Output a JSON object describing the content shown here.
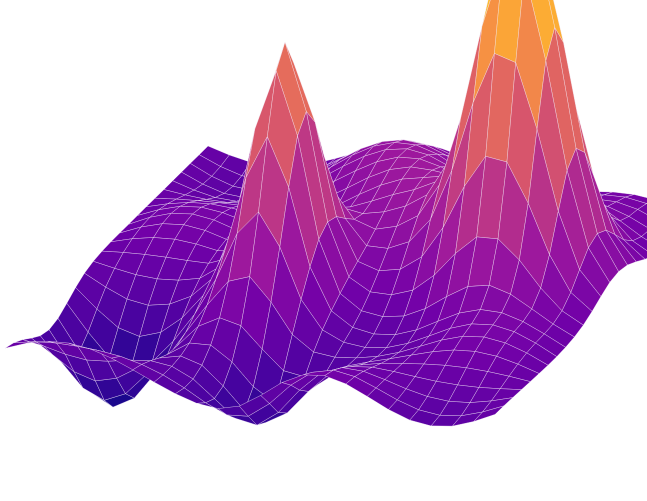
{
  "chart_data": {
    "type": "surface",
    "colorscale": "plasma",
    "colorscale_stops": [
      "#0d0887",
      "#46039f",
      "#7201a8",
      "#9c179e",
      "#bd3786",
      "#d8576b",
      "#ed7953",
      "#fb9f3a",
      "#fdca26",
      "#f0f921"
    ],
    "grid_lines": true,
    "axes_visible": false,
    "legend": "none",
    "x": [
      0,
      1,
      2,
      3,
      4,
      5,
      6,
      7,
      8,
      9,
      10,
      11,
      12,
      13,
      14,
      15,
      16,
      17,
      18,
      19,
      20,
      21,
      22,
      23
    ],
    "y": [
      0,
      1,
      2,
      3,
      4,
      5,
      6,
      7,
      8,
      9,
      10,
      11,
      12,
      13,
      14,
      15,
      16,
      17,
      18,
      19,
      20,
      21,
      22,
      23
    ],
    "peaks": [
      {
        "x": 18,
        "y": 14,
        "z": 1.0
      },
      {
        "x": 9,
        "y": 10,
        "z": 0.6
      }
    ],
    "z_range": [
      -0.25,
      1.0
    ]
  }
}
